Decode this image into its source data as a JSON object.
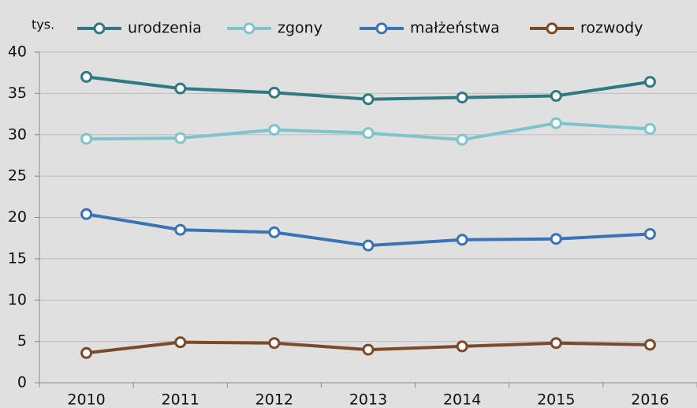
{
  "chart_data": {
    "type": "line",
    "y_label": "tys.",
    "categories": [
      "2010",
      "2011",
      "2012",
      "2013",
      "2014",
      "2015",
      "2016"
    ],
    "series": [
      {
        "name": "urodzenia",
        "color": "#2e7a80",
        "values": [
          37.0,
          35.6,
          35.1,
          34.3,
          34.5,
          34.7,
          36.4
        ]
      },
      {
        "name": "zgony",
        "color": "#7dc4cc",
        "values": [
          29.5,
          29.6,
          30.6,
          30.2,
          29.4,
          31.4,
          30.7
        ]
      },
      {
        "name": "małżeństwa",
        "color": "#3a74b4",
        "values": [
          20.4,
          18.5,
          18.2,
          16.6,
          17.3,
          17.4,
          18.0
        ]
      },
      {
        "name": "rozwody",
        "color": "#7a4a2a",
        "values": [
          3.6,
          4.9,
          4.8,
          4.0,
          4.4,
          4.8,
          4.6
        ]
      }
    ],
    "ylim": [
      0,
      40
    ],
    "yticks": [
      0,
      5,
      10,
      15,
      20,
      25,
      30,
      35,
      40
    ],
    "grid": true
  }
}
